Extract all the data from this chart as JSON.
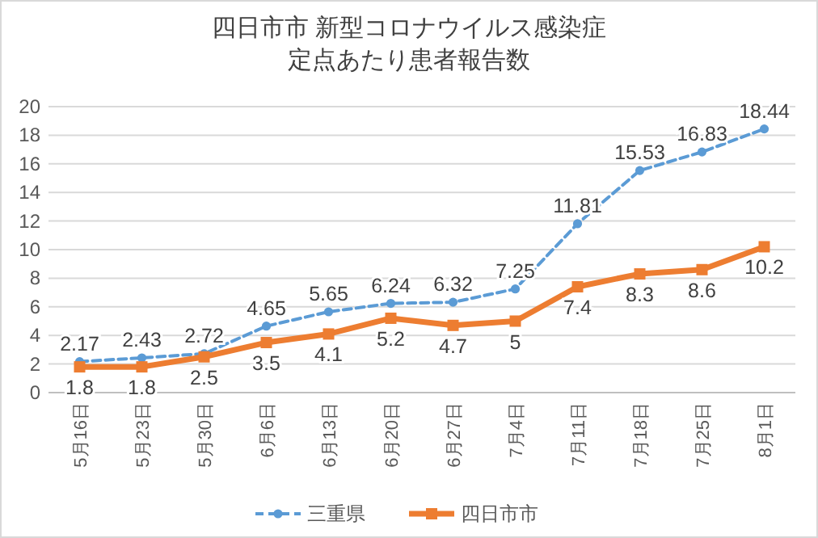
{
  "chart_data": {
    "type": "line",
    "title": "四日市市 新型コロナウイルス感染症",
    "subtitle": "定点あたり患者報告数",
    "categories": [
      "5月16日",
      "5月23日",
      "5月30日",
      "6月6日",
      "6月13日",
      "6月20日",
      "6月27日",
      "7月4日",
      "7月11日",
      "7月18日",
      "7月25日",
      "8月1日"
    ],
    "series": [
      {
        "name": "三重県",
        "color": "#5b9bd5",
        "marker": "circle",
        "line_style": "dashed",
        "values": [
          2.17,
          2.43,
          2.72,
          4.65,
          5.65,
          6.24,
          6.32,
          7.25,
          11.81,
          15.53,
          16.83,
          18.44
        ]
      },
      {
        "name": "四日市市",
        "color": "#ed7d31",
        "marker": "square",
        "line_style": "solid",
        "values": [
          1.8,
          1.8,
          2.5,
          3.5,
          4.1,
          5.2,
          4.7,
          5,
          7.4,
          8.3,
          8.6,
          10.2
        ]
      }
    ],
    "ylim": [
      0,
      20
    ],
    "yticks": [
      0,
      2,
      4,
      6,
      8,
      10,
      12,
      14,
      16,
      18,
      20
    ],
    "grid": "y",
    "data_labels": true,
    "legend": "bottom"
  }
}
